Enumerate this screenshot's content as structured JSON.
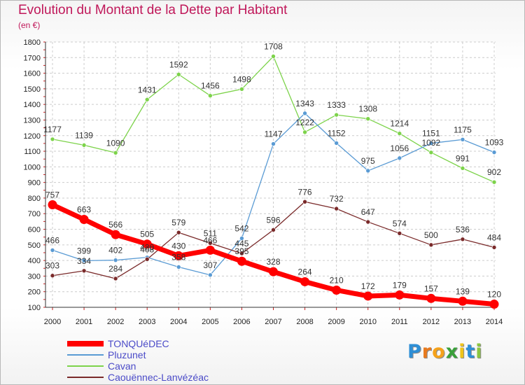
{
  "title": "Evolution du Montant de la Dette par Habitant",
  "subtitle": "(en €)",
  "brand": {
    "letters": [
      "P",
      "r",
      "o",
      "x",
      "i",
      "t",
      "i"
    ],
    "colors": [
      "#2e8fd6",
      "#e87a1e",
      "#f5a21b",
      "#3aa03a",
      "#f0c419",
      "#2e8fd6",
      "#8cc63f"
    ]
  },
  "chart_data": {
    "type": "line",
    "title": "Evolution du Montant de la Dette par Habitant",
    "ylabel": "(en €)",
    "xlabel": "",
    "ylim": [
      100,
      1800
    ],
    "yticks": [
      100,
      200,
      300,
      400,
      500,
      600,
      700,
      800,
      900,
      1000,
      1100,
      1200,
      1300,
      1400,
      1500,
      1600,
      1700,
      1800
    ],
    "x": [
      "2000",
      "2001",
      "2002",
      "2003",
      "2004",
      "2005",
      "2006",
      "2007",
      "2008",
      "2009",
      "2010",
      "2011",
      "2012",
      "2013",
      "2014"
    ],
    "grid": true,
    "legend_position": "bottom-left",
    "series": [
      {
        "name": "TONQUéDEC",
        "color": "#ff0000",
        "values": [
          757,
          663,
          566,
          505,
          430,
          466,
          395,
          328,
          264,
          210,
          172,
          179,
          157,
          139,
          120
        ]
      },
      {
        "name": "Pluzunet",
        "color": "#5a9bd4",
        "values": [
          466,
          399,
          402,
          420,
          358,
          307,
          542,
          1147,
          1343,
          1152,
          975,
          1056,
          1151,
          1175,
          1093
        ]
      },
      {
        "name": "Cavan",
        "color": "#7dd34b",
        "values": [
          1177,
          1139,
          1090,
          1431,
          1592,
          1456,
          1498,
          1708,
          1222,
          1333,
          1308,
          1214,
          1092,
          991,
          902
        ]
      },
      {
        "name": "Caouënnec-Lanvézéac",
        "color": "#7a2a2a",
        "values": [
          303,
          334,
          284,
          408,
          579,
          511,
          445,
          596,
          776,
          732,
          647,
          574,
          500,
          536,
          484
        ]
      }
    ]
  }
}
